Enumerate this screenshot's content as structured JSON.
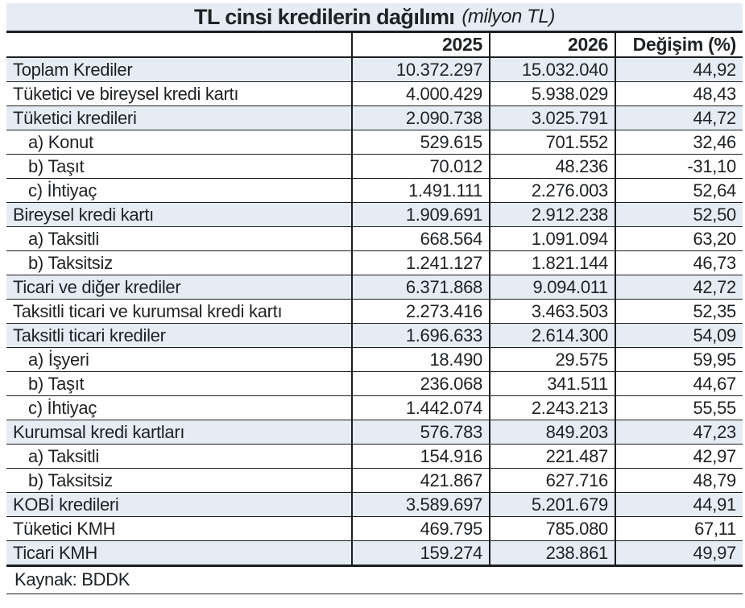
{
  "chart_data": {
    "type": "table",
    "title": "TL cinsi kredilerin dağılımı",
    "subtitle": "(milyon TL)",
    "columns": [
      "",
      "2025",
      "2026",
      "Değişim (%)"
    ],
    "rows": [
      {
        "label": "Toplam Krediler",
        "y2025": "10.372.297",
        "y2026": "15.032.040",
        "change": "44,92",
        "shaded": true,
        "indent": false
      },
      {
        "label": "Tüketici ve bireysel kredi kartı",
        "y2025": "4.000.429",
        "y2026": "5.938.029",
        "change": "48,43",
        "shaded": false,
        "indent": false
      },
      {
        "label": "Tüketici kredileri",
        "y2025": "2.090.738",
        "y2026": "3.025.791",
        "change": "44,72",
        "shaded": true,
        "indent": false
      },
      {
        "label": "a) Konut",
        "y2025": "529.615",
        "y2026": "701.552",
        "change": "32,46",
        "shaded": false,
        "indent": true
      },
      {
        "label": "b) Taşıt",
        "y2025": "70.012",
        "y2026": "48.236",
        "change": "-31,10",
        "shaded": false,
        "indent": true
      },
      {
        "label": "c) İhtiyaç",
        "y2025": "1.491.111",
        "y2026": "2.276.003",
        "change": "52,64",
        "shaded": false,
        "indent": true
      },
      {
        "label": "Bireysel kredi kartı",
        "y2025": "1.909.691",
        "y2026": "2.912.238",
        "change": "52,50",
        "shaded": true,
        "indent": false
      },
      {
        "label": "a) Taksitli",
        "y2025": "668.564",
        "y2026": "1.091.094",
        "change": "63,20",
        "shaded": false,
        "indent": true
      },
      {
        "label": "b) Taksitsiz",
        "y2025": "1.241.127",
        "y2026": "1.821.144",
        "change": "46,73",
        "shaded": false,
        "indent": true
      },
      {
        "label": "Ticari ve diğer krediler",
        "y2025": "6.371.868",
        "y2026": "9.094.011",
        "change": "42,72",
        "shaded": true,
        "indent": false
      },
      {
        "label": "Taksitli ticari ve kurumsal kredi kartı",
        "y2025": "2.273.416",
        "y2026": "3.463.503",
        "change": "52,35",
        "shaded": false,
        "indent": false
      },
      {
        "label": "Taksitli ticari krediler",
        "y2025": "1.696.633",
        "y2026": "2.614.300",
        "change": "54,09",
        "shaded": true,
        "indent": false
      },
      {
        "label": "a) İşyeri",
        "y2025": "18.490",
        "y2026": "29.575",
        "change": "59,95",
        "shaded": false,
        "indent": true
      },
      {
        "label": "b) Taşıt",
        "y2025": "236.068",
        "y2026": "341.511",
        "change": "44,67",
        "shaded": false,
        "indent": true
      },
      {
        "label": "c) İhtiyaç",
        "y2025": "1.442.074",
        "y2026": "2.243.213",
        "change": "55,55",
        "shaded": false,
        "indent": true
      },
      {
        "label": "Kurumsal kredi kartları",
        "y2025": "576.783",
        "y2026": "849.203",
        "change": "47,23",
        "shaded": true,
        "indent": false
      },
      {
        "label": "a) Taksitli",
        "y2025": "154.916",
        "y2026": "221.487",
        "change": "42,97",
        "shaded": false,
        "indent": true
      },
      {
        "label": "b) Taksitsiz",
        "y2025": "421.867",
        "y2026": "627.716",
        "change": "48,79",
        "shaded": false,
        "indent": true
      },
      {
        "label": "KOBİ kredileri",
        "y2025": "3.589.697",
        "y2026": "5.201.679",
        "change": "44,91",
        "shaded": true,
        "indent": false
      },
      {
        "label": "Tüketici KMH",
        "y2025": "469.795",
        "y2026": "785.080",
        "change": "67,11",
        "shaded": false,
        "indent": false
      },
      {
        "label": "Ticari KMH",
        "y2025": "159.274",
        "y2026": "238.861",
        "change": "49,97",
        "shaded": true,
        "indent": false
      }
    ],
    "source": "Kaynak: BDDK",
    "layout": {
      "grid": "horizontal-rules-with-column-dividers",
      "legend": "none"
    }
  },
  "colors": {
    "row_shade": "#e5ecf3",
    "border": "#1b1d20",
    "text": "#1f2225",
    "background": "#ffffff"
  }
}
